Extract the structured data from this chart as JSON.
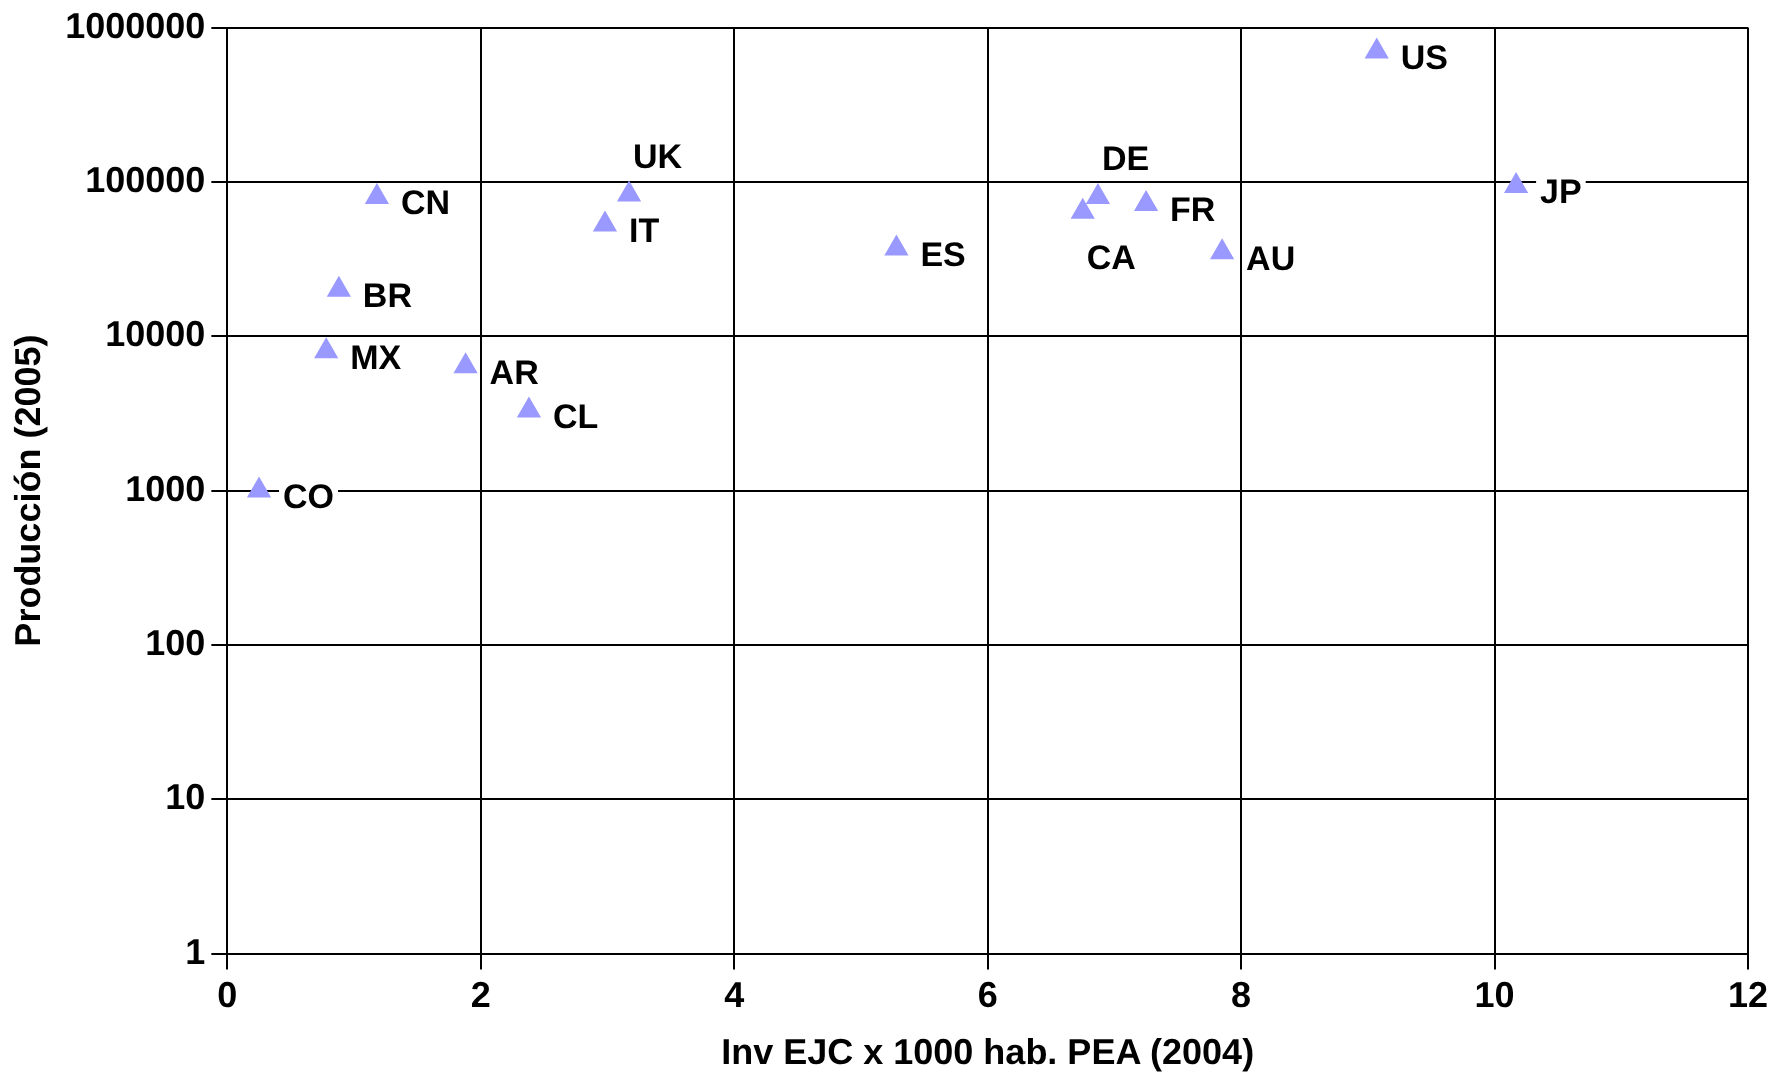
{
  "chart_data": {
    "type": "scatter",
    "xlabel": "Inv EJC x 1000 hab. PEA (2004)",
    "ylabel": "Producción (2005)",
    "log": "y",
    "grid": true,
    "legend": false,
    "marker": "triangle",
    "xlim": [
      0,
      12
    ],
    "xticks": [
      0,
      2,
      4,
      6,
      8,
      10,
      12
    ],
    "ylim": [
      1,
      1000000
    ],
    "yticks": [
      1,
      10,
      100,
      1000,
      10000,
      100000,
      1000000
    ],
    "series": [
      {
        "color": "#9999ff",
        "x": [
          0.25,
          0.78,
          0.88,
          1.18,
          1.88,
          2.38,
          2.98,
          3.17,
          5.28,
          6.75,
          6.87,
          7.25,
          7.85,
          9.07,
          10.17
        ],
        "values": [
          1000,
          8000,
          20000,
          80000,
          6400,
          3300,
          53000,
          83000,
          37000,
          64000,
          80000,
          72000,
          35000,
          700000,
          94000
        ]
      }
    ],
    "annotations": [
      {
        "text": "CO",
        "x": 0.25,
        "y": 1000
      },
      {
        "text": "MX",
        "x": 0.78,
        "y": 8000
      },
      {
        "text": "BR",
        "x": 0.88,
        "y": 20000
      },
      {
        "text": "CN",
        "x": 1.18,
        "y": 80000
      },
      {
        "text": "AR",
        "x": 1.88,
        "y": 6400
      },
      {
        "text": "CL",
        "x": 2.38,
        "y": 3300
      },
      {
        "text": "IT",
        "x": 2.98,
        "y": 53000
      },
      {
        "text": "UK",
        "x": 3.17,
        "y": 83000
      },
      {
        "text": "ES",
        "x": 5.28,
        "y": 37000
      },
      {
        "text": "CA",
        "x": 6.75,
        "y": 64000
      },
      {
        "text": "DE",
        "x": 6.87,
        "y": 80000
      },
      {
        "text": "FR",
        "x": 7.25,
        "y": 72000
      },
      {
        "text": "AU",
        "x": 7.85,
        "y": 35000
      },
      {
        "text": "US",
        "x": 9.07,
        "y": 700000
      },
      {
        "text": "JP",
        "x": 10.17,
        "y": 94000
      }
    ]
  }
}
